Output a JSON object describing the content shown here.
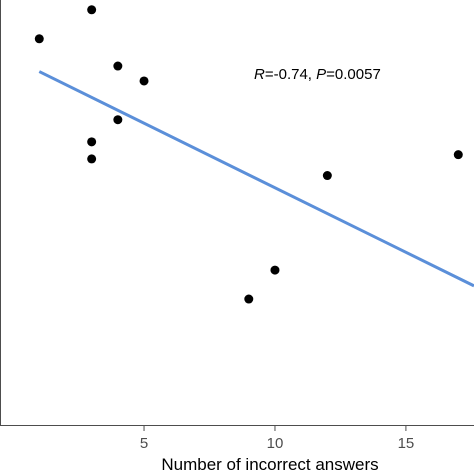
{
  "chart_data": {
    "type": "scatter",
    "title": "",
    "xlabel": "Number of incorrect answers",
    "ylabel": "",
    "xlim": [
      -0.5,
      17.6
    ],
    "ylim": [
      0,
      1
    ],
    "x_ticks": [
      5,
      10,
      15
    ],
    "grid": false,
    "colors": {
      "points": "#000000",
      "fit_line": "#5b8fd9",
      "axis": "#4d4d4d"
    },
    "points": [
      {
        "x": 1,
        "y": 0.909
      },
      {
        "x": 3,
        "y": 0.977
      },
      {
        "x": 3,
        "y": 0.667
      },
      {
        "x": 3,
        "y": 0.627
      },
      {
        "x": 4,
        "y": 0.845
      },
      {
        "x": 4,
        "y": 0.719
      },
      {
        "x": 5,
        "y": 0.81
      },
      {
        "x": 9,
        "y": 0.298
      },
      {
        "x": 10,
        "y": 0.366
      },
      {
        "x": 12,
        "y": 0.588
      },
      {
        "x": 17,
        "y": 0.637
      }
    ],
    "fit_line": {
      "x": [
        1,
        17.6
      ],
      "y": [
        0.832,
        0.329
      ]
    },
    "annotation": {
      "r_label": "R",
      "r_value": "=-0.74, ",
      "p_label": "P",
      "p_value": "=0.0057"
    }
  }
}
